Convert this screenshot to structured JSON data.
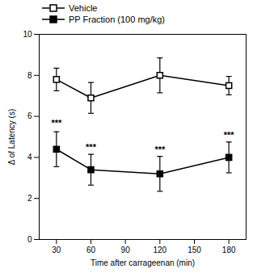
{
  "chart_data": {
    "type": "line",
    "xlabel": "Time after carrageenan (min)",
    "ylabel": "Δ of Latency (s)",
    "x": [
      30,
      60,
      120,
      180
    ],
    "series": [
      {
        "name": "Vehicle",
        "color": "#000000",
        "marker": "square_open",
        "values": [
          7.8,
          6.9,
          8.0,
          7.5
        ],
        "errors": [
          0.55,
          0.75,
          0.85,
          0.45
        ]
      },
      {
        "name": "PP Fraction (100 mg/kg)",
        "color": "#000000",
        "marker": "square",
        "values": [
          4.4,
          3.4,
          3.2,
          4.0
        ],
        "errors": [
          0.85,
          0.75,
          0.85,
          0.75
        ]
      }
    ],
    "annotations": [
      {
        "x": 30,
        "y": 5.55,
        "text": "***"
      },
      {
        "x": 60,
        "y": 4.35,
        "text": "***"
      },
      {
        "x": 120,
        "y": 4.25,
        "text": "***"
      },
      {
        "x": 180,
        "y": 4.95,
        "text": "***"
      }
    ],
    "color": "#000000",
    "xlim": [
      15,
      195
    ],
    "ylim": [
      0,
      10
    ],
    "xticks": [
      30,
      60,
      90,
      120,
      150,
      180
    ],
    "yticks": [
      0,
      2,
      4,
      6,
      8,
      10
    ],
    "legend": "upper left"
  }
}
